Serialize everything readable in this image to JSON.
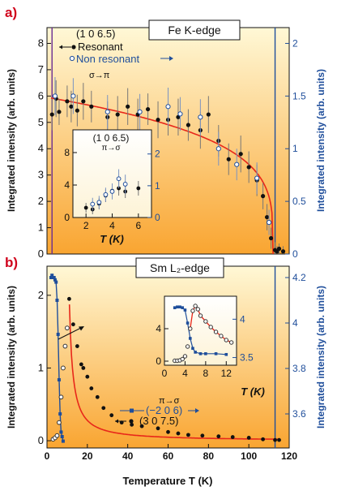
{
  "colors": {
    "red": "#d0021b",
    "blue": "#1f4e9b",
    "fit": "#e8271a",
    "purple": "#6a2c91",
    "bg_top": "#fff6cc",
    "bg_bottom": "#f9a12a",
    "black": "#111111"
  },
  "chart_data": [
    {
      "id": "a",
      "type": "scatter",
      "panel_label": "a)",
      "title": "Fe K-edge",
      "ylabel": "Integrated intensity (arb. units)",
      "y2label": "Integrated intensity (arb. units)",
      "xlim": [
        0,
        120
      ],
      "ylim": [
        0,
        8.6
      ],
      "y2lim": [
        0,
        2.15
      ],
      "yticks": [
        0,
        1,
        2,
        3,
        4,
        5,
        6,
        7,
        8
      ],
      "y2ticks": [
        0,
        0.5,
        1,
        1.5,
        2
      ],
      "y2ticklabels": [
        "0",
        "0.5",
        "1",
        "1.5",
        "2"
      ],
      "legend": {
        "reflection": "(1 0 6.5)",
        "resonant": "Resonant",
        "nonresonant": "Non resonant",
        "polarization": "σ→π"
      },
      "series": [
        {
          "name": "Resonant",
          "axis": "left",
          "marker": "filled",
          "points": [
            [
              2.5,
              5.3
            ],
            [
              4.5,
              5.9
            ],
            [
              6,
              5.4
            ],
            [
              10,
              5.8
            ],
            [
              12,
              5.6
            ],
            [
              15,
              5.45
            ],
            [
              18,
              5.8
            ],
            [
              22,
              5.6
            ],
            [
              30,
              5.2
            ],
            [
              35,
              5.3
            ],
            [
              40,
              5.6
            ],
            [
              45,
              5.3
            ],
            [
              50,
              5.5
            ],
            [
              55,
              5.1
            ],
            [
              60,
              5.1
            ],
            [
              65,
              5.2
            ],
            [
              70,
              4.9
            ],
            [
              76,
              4.7
            ],
            [
              80,
              5.3
            ],
            [
              85,
              4.3
            ],
            [
              90,
              3.6
            ],
            [
              96,
              3.8
            ],
            [
              100,
              3.3
            ],
            [
              104,
              2.8
            ],
            [
              107,
              2.2
            ],
            [
              109,
              1.4
            ],
            [
              111,
              0.6
            ],
            [
              113,
              0.15
            ],
            [
              114,
              0.1
            ],
            [
              115,
              0.2
            ],
            [
              117,
              0.1
            ]
          ],
          "errors": [
            0.6,
            0.7,
            0.5,
            0.6,
            0.6,
            0.6,
            0.7,
            0.6,
            0.6,
            0.7,
            0.7,
            0.6,
            0.6,
            0.7,
            0.6,
            0.7,
            0.6,
            0.7,
            0.7,
            0.6,
            0.6,
            0.7,
            0.6,
            0.6,
            0.5,
            0.5,
            0.4,
            0.3,
            0.2,
            0.2,
            0.2
          ]
        },
        {
          "name": "Non resonant",
          "axis": "right",
          "marker": "open",
          "points": [
            [
              4,
              1.5
            ],
            [
              13,
              1.5
            ],
            [
              30,
              1.35
            ],
            [
              46,
              1.35
            ],
            [
              60,
              1.4
            ],
            [
              66,
              1.33
            ],
            [
              76,
              1.3
            ],
            [
              85,
              1.0
            ],
            [
              94,
              0.85
            ],
            [
              104,
              0.72
            ],
            [
              110,
              0.3
            ]
          ],
          "errors": [
            0.18,
            0.17,
            0.16,
            0.17,
            0.18,
            0.16,
            0.17,
            0.16,
            0.15,
            0.15,
            0.12
          ]
        }
      ],
      "fit_curve": {
        "T0": 112,
        "A": 5.95,
        "beta": 0.25
      },
      "vlines": [
        {
          "x": 2.5,
          "color": "purple"
        },
        {
          "x": 113,
          "color": "blue"
        }
      ],
      "inset": {
        "title": "(1 0 6.5)",
        "subtitle": "π→σ",
        "xlabel": "T (K)",
        "xlim": [
          1,
          7
        ],
        "ylim": [
          0,
          9
        ],
        "y2lim": [
          0,
          2.3
        ],
        "xticks": [
          2,
          4,
          6
        ],
        "yticks": [
          0,
          4,
          8
        ],
        "y2ticks": [
          0,
          1,
          2
        ],
        "series": [
          {
            "name": "Resonant",
            "axis": "left",
            "marker": "filled",
            "points": [
              [
                2,
                1.2
              ],
              [
                2.5,
                1.0
              ],
              [
                3,
                1.7
              ],
              [
                3.5,
                2.7
              ],
              [
                4,
                3.3
              ],
              [
                4.5,
                3.6
              ],
              [
                5,
                3.2
              ],
              [
                6,
                3.6
              ]
            ],
            "errors": [
              0.6,
              0.6,
              0.7,
              0.8,
              0.9,
              0.9,
              0.8,
              0.9
            ]
          },
          {
            "name": "Non resonant",
            "axis": "right",
            "marker": "open",
            "points": [
              [
                2.5,
                0.42
              ],
              [
                3,
                0.48
              ],
              [
                3.5,
                0.72
              ],
              [
                4,
                0.82
              ],
              [
                4.5,
                1.22
              ],
              [
                5,
                1.05
              ]
            ],
            "errors": [
              0.2,
              0.2,
              0.22,
              0.25,
              0.3,
              0.3
            ]
          }
        ]
      }
    },
    {
      "id": "b",
      "type": "scatter",
      "panel_label": "b)",
      "title": "Sm L₂-edge",
      "ylabel": "Integrated intensity (arb. units)",
      "y2label": "Integrated intensity (arb. units)",
      "xlabel": "Temperature T (K)",
      "xlim": [
        0,
        120
      ],
      "xticks": [
        0,
        20,
        40,
        60,
        80,
        100,
        120
      ],
      "ylim": [
        -0.1,
        2.4
      ],
      "y2lim": [
        3.45,
        4.25
      ],
      "yticks": [
        0,
        1,
        2
      ],
      "y2ticks": [
        3.6,
        3.8,
        4.0,
        4.2
      ],
      "y2ticklabels": [
        "3.6",
        "3.8",
        "4",
        "4.2"
      ],
      "legend": {
        "polarization": "π→σ",
        "blue_series": "(−2 0 6)",
        "black_series": "(3 0 7.5)"
      },
      "series": [
        {
          "name": "(3 0 7.5)",
          "axis": "left",
          "marker": "filled",
          "points": [
            [
              11,
              1.95
            ],
            [
              13,
              1.6
            ],
            [
              15,
              1.3
            ],
            [
              17,
              1.05
            ],
            [
              18,
              1.0
            ],
            [
              20,
              0.88
            ],
            [
              22,
              0.72
            ],
            [
              25,
              0.6
            ],
            [
              28,
              0.45
            ],
            [
              32,
              0.35
            ],
            [
              37,
              0.25
            ],
            [
              42,
              0.22
            ],
            [
              47,
              0.2
            ],
            [
              55,
              0.17
            ],
            [
              60,
              0.12
            ],
            [
              65,
              0.1
            ],
            [
              70,
              0.08
            ],
            [
              77,
              0.07
            ],
            [
              85,
              0.06
            ],
            [
              92,
              0.05
            ],
            [
              100,
              0.04
            ],
            [
              107,
              0.02
            ],
            [
              113,
              0.01
            ],
            [
              115,
              0.01
            ]
          ]
        },
        {
          "name": "(3 0 7.5) low T",
          "axis": "left",
          "marker": "open",
          "points": [
            [
              3,
              0.02
            ],
            [
              4,
              0.04
            ],
            [
              5,
              0.07
            ],
            [
              6,
              0.25
            ],
            [
              7,
              0.6
            ],
            [
              8,
              1.0
            ],
            [
              9,
              1.3
            ],
            [
              10,
              1.55
            ]
          ]
        },
        {
          "name": "(−2 0 6)",
          "axis": "right",
          "marker": "square",
          "points": [
            [
              2,
              4.2
            ],
            [
              2.5,
              4.21
            ],
            [
              3,
              4.2
            ],
            [
              3.5,
              4.2
            ],
            [
              4,
              4.19
            ],
            [
              4.5,
              4.18
            ],
            [
              5,
              4.1
            ],
            [
              5.5,
              3.95
            ],
            [
              6,
              3.75
            ],
            [
              6.5,
              3.6
            ],
            [
              7,
              3.52
            ],
            [
              7.5,
              3.5
            ],
            [
              8,
              3.48
            ]
          ]
        }
      ],
      "fit_curve": {
        "Tc": 10.5,
        "A": 2.4,
        "n": 1.15,
        "xmax": 115
      },
      "vlines": [
        {
          "x": 113,
          "color": "blue"
        }
      ],
      "inset": {
        "xlabel": "T (K)",
        "xlim": [
          0,
          14
        ],
        "ylim": [
          -0.5,
          8
        ],
        "y2lim": [
          3.4,
          4.3
        ],
        "xticks": [
          0,
          4,
          8,
          12
        ],
        "yticks": [
          0,
          4
        ],
        "y2ticks": [
          3.5,
          4
        ],
        "y2ticklabels": [
          "3.5",
          "4"
        ],
        "series": [
          {
            "name": "(3 0 7.5)",
            "axis": "left",
            "marker": "open",
            "points": [
              [
                2,
                0.05
              ],
              [
                2.5,
                0.05
              ],
              [
                3,
                0.1
              ],
              [
                3.5,
                0.25
              ],
              [
                4,
                0.6
              ],
              [
                4.5,
                1.8
              ],
              [
                5,
                4.0
              ],
              [
                5.5,
                6.2
              ],
              [
                6,
                6.8
              ],
              [
                6.5,
                6.4
              ],
              [
                7,
                5.6
              ],
              [
                8,
                4.9
              ],
              [
                9,
                4.2
              ],
              [
                10,
                3.6
              ],
              [
                11,
                3.1
              ],
              [
                12,
                2.6
              ],
              [
                13,
                2.3
              ]
            ]
          },
          {
            "name": "(−2 0 6)",
            "axis": "right",
            "marker": "square",
            "points": [
              [
                2,
                4.15
              ],
              [
                2.5,
                4.16
              ],
              [
                3,
                4.16
              ],
              [
                3.5,
                4.15
              ],
              [
                4,
                4.12
              ],
              [
                4.5,
                3.95
              ],
              [
                5,
                3.75
              ],
              [
                5.5,
                3.62
              ],
              [
                6,
                3.57
              ],
              [
                7,
                3.55
              ],
              [
                8,
                3.55
              ],
              [
                10,
                3.55
              ],
              [
                12,
                3.54
              ]
            ]
          }
        ]
      }
    }
  ]
}
